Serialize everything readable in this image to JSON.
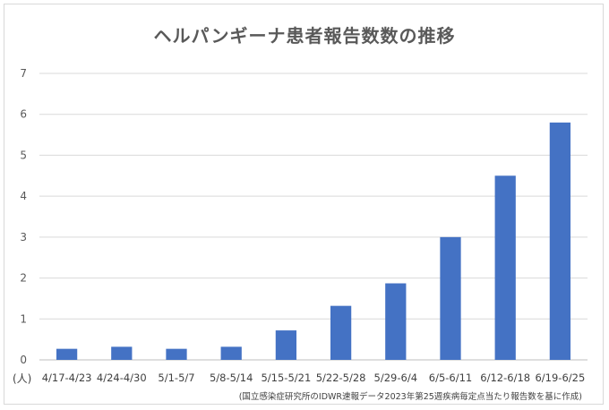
{
  "chart_data": {
    "type": "bar",
    "title": "ヘルパンギーナ患者報告数数の推移",
    "unit_label": "(人)",
    "source_note": "(国立感染症研究所のIDWR速報データ2023年第25週疾病毎定点当たり報告数を基に作成)",
    "categories": [
      "4/17-4/23",
      "4/24-4/30",
      "5/1-5/7",
      "5/8-5/14",
      "5/15-5/21",
      "5/22-5/28",
      "5/29-6/4",
      "6/5-6/11",
      "6/12-6/18",
      "6/19-6/25"
    ],
    "values": [
      0.27,
      0.32,
      0.27,
      0.32,
      0.72,
      1.32,
      1.87,
      3.0,
      4.5,
      5.8
    ],
    "ylim": [
      0,
      7
    ],
    "yticks": [
      "0",
      "1",
      "2",
      "3",
      "4",
      "5",
      "6",
      "7"
    ],
    "grid": true,
    "bar_color": "#4472c4"
  }
}
